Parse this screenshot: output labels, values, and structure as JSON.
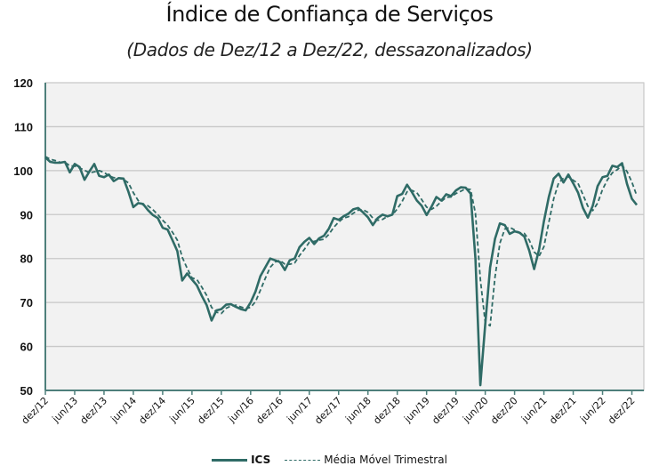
{
  "chart_data": {
    "type": "line",
    "title": "Índice de Confiança de Serviços",
    "subtitle": "(Dados de Dez/12 a Dez/22, dessazonalizados)",
    "xlabel": "",
    "ylabel": "",
    "ylim": [
      50,
      120
    ],
    "yticks": [
      50,
      60,
      70,
      80,
      90,
      100,
      110,
      120
    ],
    "grid": true,
    "legend_position": "bottom",
    "x_start": "dez/12",
    "x_ticks": [
      "dez/12",
      "jun/13",
      "dez/13",
      "jun/14",
      "dez/14",
      "jun/15",
      "dez/15",
      "jun/16",
      "dez/16",
      "jun/17",
      "dez/17",
      "jun/18",
      "dez/18",
      "jun/19",
      "dez/19",
      "jun/20",
      "dez/20",
      "jun/21",
      "dez/21",
      "jun/22",
      "dez/22"
    ],
    "series": [
      {
        "name": "ICS",
        "style": "solid",
        "color": "#2f6b66",
        "values": [
          103.0,
          102.0,
          101.8,
          101.8,
          102.0,
          99.6,
          101.5,
          100.8,
          97.9,
          99.8,
          101.5,
          98.8,
          98.5,
          99.1,
          97.6,
          98.3,
          98.2,
          95.2,
          91.7,
          92.6,
          92.4,
          91.0,
          89.9,
          89.2,
          87.0,
          86.6,
          84.2,
          81.7,
          75.0,
          76.6,
          75.2,
          73.9,
          71.5,
          69.4,
          65.9,
          68.2,
          68.5,
          69.5,
          69.6,
          69.0,
          68.5,
          68.2,
          70.0,
          72.5,
          76.0,
          78.0,
          80.0,
          79.6,
          79.2,
          77.4,
          79.6,
          80.0,
          82.6,
          83.8,
          84.7,
          83.3,
          84.6,
          85.2,
          86.8,
          89.2,
          88.8,
          89.6,
          90.2,
          91.2,
          91.5,
          90.5,
          89.4,
          87.6,
          89.2,
          90.0,
          89.6,
          90.0,
          94.2,
          94.7,
          96.8,
          95.1,
          93.2,
          92.0,
          89.9,
          91.8,
          94.0,
          93.2,
          94.6,
          94.2,
          95.5,
          96.2,
          96.1,
          94.8,
          80.0,
          51.2,
          65.0,
          78.0,
          84.5,
          88.0,
          87.6,
          85.6,
          86.2,
          85.9,
          85.0,
          81.8,
          77.6,
          82.0,
          88.5,
          94.0,
          98.2,
          99.3,
          97.3,
          99.1,
          97.1,
          95.0,
          91.5,
          89.3,
          92.0,
          96.5,
          98.5,
          98.8,
          101.1,
          100.8,
          101.7,
          97.0,
          93.6,
          92.2
        ]
      },
      {
        "name": "Média Móvel Trimestral",
        "style": "dashed",
        "color": "#2f6b66",
        "values": [
          103.2,
          102.6,
          102.3,
          101.9,
          101.9,
          101.1,
          101.0,
          100.6,
          100.1,
          99.5,
          99.7,
          100.0,
          99.6,
          98.8,
          98.4,
          98.3,
          98.0,
          97.2,
          95.0,
          93.2,
          92.2,
          92.0,
          91.1,
          90.0,
          88.7,
          87.6,
          86.0,
          84.2,
          80.3,
          77.8,
          75.6,
          75.2,
          73.5,
          71.6,
          68.9,
          67.8,
          67.5,
          68.7,
          69.2,
          69.4,
          69.0,
          68.6,
          68.9,
          70.2,
          72.8,
          75.5,
          78.0,
          79.2,
          79.6,
          78.7,
          78.7,
          79.0,
          80.7,
          82.1,
          83.7,
          83.9,
          84.2,
          84.4,
          85.5,
          87.1,
          88.3,
          89.2,
          89.5,
          90.3,
          91.0,
          91.1,
          90.5,
          89.2,
          88.7,
          88.9,
          89.6,
          89.9,
          91.3,
          93.0,
          95.2,
          95.5,
          95.0,
          93.4,
          91.7,
          91.2,
          91.9,
          93.0,
          93.9,
          94.0,
          94.8,
          95.3,
          95.9,
          95.7,
          90.3,
          75.3,
          65.4,
          64.7,
          75.8,
          83.5,
          86.7,
          87.1,
          86.5,
          85.9,
          85.7,
          84.2,
          81.5,
          80.5,
          82.7,
          88.2,
          93.6,
          97.2,
          98.3,
          98.6,
          97.8,
          97.1,
          94.5,
          91.9,
          90.9,
          92.6,
          95.7,
          97.9,
          99.5,
          100.2,
          101.2,
          99.8,
          97.4,
          94.3
        ]
      }
    ]
  }
}
